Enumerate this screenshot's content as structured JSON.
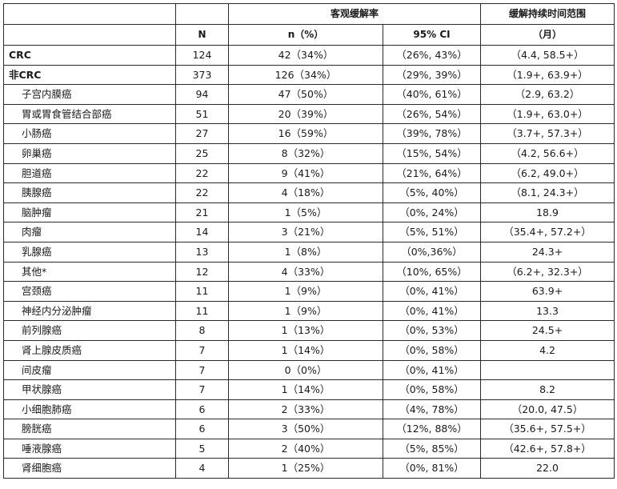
{
  "header": {
    "n_label": "N",
    "orr_label": "客观缓解率",
    "n_pct_label": "n（%）",
    "ci_label": "95% CI",
    "duration_label": "缓解持续时间范围",
    "duration_unit": "（月）"
  },
  "rows": [
    {
      "label": "CRC",
      "n": "124",
      "npct": "42（34%）",
      "ci": "（26%, 43%）",
      "range": "（4.4, 58.5+）",
      "bold": true
    },
    {
      "label": "非CRC",
      "n": "373",
      "npct": "126（34%）",
      "ci": "（29%, 39%）",
      "range": "（1.9+, 63.9+）",
      "bold": true
    },
    {
      "label": "子宫内膜癌",
      "n": "94",
      "npct": "47（50%）",
      "ci": "（40%, 61%）",
      "range": "（2.9, 63.2）"
    },
    {
      "label": "胃或胃食管结合部癌",
      "n": "51",
      "npct": "20（39%）",
      "ci": "（26%, 54%）",
      "range": "（1.9+, 63.0+）"
    },
    {
      "label": "小肠癌",
      "n": "27",
      "npct": "16（59%）",
      "ci": "（39%, 78%）",
      "range": "（3.7+, 57.3+）"
    },
    {
      "label": "卵巢癌",
      "n": "25",
      "npct": "8（32%）",
      "ci": "（15%, 54%）",
      "range": "（4.2, 56.6+）"
    },
    {
      "label": "胆道癌",
      "n": "22",
      "npct": "9（41%）",
      "ci": "（21%, 64%）",
      "range": "（6.2, 49.0+）"
    },
    {
      "label": "胰腺癌",
      "n": "22",
      "npct": "4（18%）",
      "ci": "（5%, 40%）",
      "range": "（8.1, 24.3+）"
    },
    {
      "label": "脑肿瘤",
      "n": "21",
      "npct": "1（5%）",
      "ci": "（0%, 24%）",
      "range": "18.9"
    },
    {
      "label": "肉瘤",
      "n": "14",
      "npct": "3（21%）",
      "ci": "（5%, 51%）",
      "range": "（35.4+, 57.2+）"
    },
    {
      "label": "乳腺癌",
      "n": "13",
      "npct": "1（8%）",
      "ci": "（0%,36%）",
      "range": "24.3+"
    },
    {
      "label": "其他*",
      "n": "12",
      "npct": "4（33%）",
      "ci": "（10%, 65%）",
      "range": "（6.2+, 32.3+）"
    },
    {
      "label": "宫颈癌",
      "n": "11",
      "npct": "1（9%）",
      "ci": "（0%, 41%）",
      "range": "63.9+"
    },
    {
      "label": "神经内分泌肿瘤",
      "n": "11",
      "npct": "1（9%）",
      "ci": "（0%, 41%）",
      "range": "13.3"
    },
    {
      "label": "前列腺癌",
      "n": "8",
      "npct": "1（13%）",
      "ci": "（0%, 53%）",
      "range": "24.5+"
    },
    {
      "label": "肾上腺皮质癌",
      "n": "7",
      "npct": "1（14%）",
      "ci": "（0%, 58%）",
      "range": "4.2"
    },
    {
      "label": "间皮瘤",
      "n": "7",
      "npct": "0（0%）",
      "ci": "（0%, 41%）",
      "range": ""
    },
    {
      "label": "甲状腺癌",
      "n": "7",
      "npct": "1（14%）",
      "ci": "（0%, 58%）",
      "range": "8.2"
    },
    {
      "label": "小细胞肺癌",
      "n": "6",
      "npct": "2（33%）",
      "ci": "（4%, 78%）",
      "range": "（20.0, 47.5）"
    },
    {
      "label": "膀胱癌",
      "n": "6",
      "npct": "3（50%）",
      "ci": "（12%, 88%）",
      "range": "（35.6+, 57.5+）"
    },
    {
      "label": "唾液腺癌",
      "n": "5",
      "npct": "2（40%）",
      "ci": "（5%, 85%）",
      "range": "（42.6+, 57.8+）"
    },
    {
      "label": "肾细胞癌",
      "n": "4",
      "npct": "1（25%）",
      "ci": "（0%, 81%）",
      "range": "22.0"
    }
  ]
}
